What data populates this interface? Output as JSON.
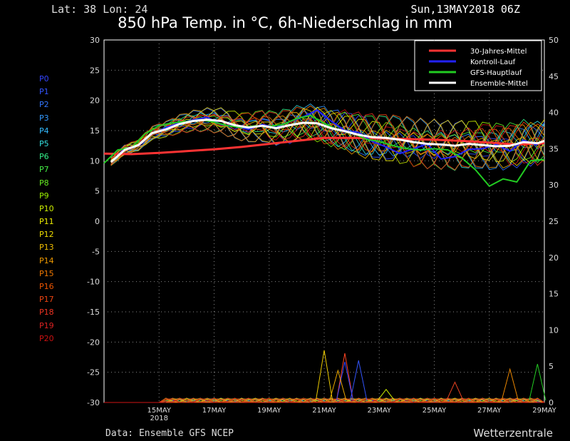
{
  "header": {
    "location": "Lat: 38 Lon: 24",
    "run_time": "Sun,13MAY2018 06Z",
    "title": "850 hPa Temp. in °C, 6h-Niederschlag in mm"
  },
  "footer": {
    "source": "Data: Ensemble GFS NCEP",
    "brand": "Wetterzentrale"
  },
  "members": [
    {
      "label": "P0",
      "color": "#3344ff"
    },
    {
      "label": "P1",
      "color": "#3355ff"
    },
    {
      "label": "P2",
      "color": "#3377ff"
    },
    {
      "label": "P3",
      "color": "#3399ff"
    },
    {
      "label": "P4",
      "color": "#33bbff"
    },
    {
      "label": "P5",
      "color": "#33dddd"
    },
    {
      "label": "P6",
      "color": "#33ee88"
    },
    {
      "label": "P7",
      "color": "#44ee44"
    },
    {
      "label": "P8",
      "color": "#66ee22"
    },
    {
      "label": "P9",
      "color": "#99ee00"
    },
    {
      "label": "P10",
      "color": "#ccee00"
    },
    {
      "label": "P11",
      "color": "#eeee00"
    },
    {
      "label": "P12",
      "color": "#eedd00"
    },
    {
      "label": "P13",
      "color": "#eebb00"
    },
    {
      "label": "P14",
      "color": "#ee9900"
    },
    {
      "label": "P15",
      "color": "#ee7700"
    },
    {
      "label": "P16",
      "color": "#ee5500"
    },
    {
      "label": "P17",
      "color": "#ee4411"
    },
    {
      "label": "P18",
      "color": "#ee3322"
    },
    {
      "label": "P19",
      "color": "#dd2222"
    },
    {
      "label": "P20",
      "color": "#cc1111"
    }
  ],
  "chart_data": {
    "type": "line",
    "title": "850 hPa Temp. in °C, 6h-Niederschlag in mm",
    "x_ticks": [
      {
        "label": "15MAY",
        "sub": "2018",
        "day": 2
      },
      {
        "label": "17MAY",
        "sub": "",
        "day": 4
      },
      {
        "label": "19MAY",
        "sub": "",
        "day": 6
      },
      {
        "label": "21MAY",
        "sub": "",
        "day": 8
      },
      {
        "label": "23MAY",
        "sub": "",
        "day": 10
      },
      {
        "label": "25MAY",
        "sub": "",
        "day": 12
      },
      {
        "label": "27MAY",
        "sub": "",
        "day": 14
      },
      {
        "label": "29MAY",
        "sub": "",
        "day": 16
      }
    ],
    "x_range_days": [
      0,
      16
    ],
    "y_left": {
      "range": [
        -30,
        30
      ],
      "ticks": [
        30,
        25,
        20,
        15,
        10,
        5,
        0,
        -5,
        -10,
        -15,
        -20,
        -25,
        -30
      ],
      "unit": "°C"
    },
    "y_right": {
      "range": [
        0,
        50
      ],
      "ticks": [
        50,
        45,
        40,
        35,
        30,
        25,
        20,
        15,
        10,
        5,
        0
      ],
      "unit": "mm"
    },
    "grid": true,
    "legend": {
      "placement": "top-right",
      "entries": [
        {
          "name": "30-Jahres-Mittel",
          "color": "#ff3333"
        },
        {
          "name": "Kontroll-Lauf",
          "color": "#2222ff"
        },
        {
          "name": "GFS-Hauptlauf",
          "color": "#22cc22"
        },
        {
          "name": "Ensemble-Mittel",
          "color": "#ffffff"
        }
      ]
    },
    "series": [
      {
        "name": "30-Jahres-Mittel",
        "color": "#ff3333",
        "width": 3,
        "x": [
          0,
          1,
          2,
          3,
          4,
          5,
          6,
          7,
          8,
          9,
          10,
          11,
          12,
          13,
          14,
          15,
          16
        ],
        "y": [
          11.2,
          11.1,
          11.3,
          11.6,
          11.9,
          12.3,
          12.8,
          13.3,
          13.8,
          13.8,
          13.7,
          13.6,
          13.5,
          13.3,
          13.0,
          12.7,
          12.9
        ]
      },
      {
        "name": "Kontroll-Lauf",
        "color": "#2222ff",
        "width": 2,
        "x": [
          0.25,
          0.75,
          1.25,
          1.75,
          2.25,
          2.75,
          3.25,
          3.75,
          4.25,
          4.75,
          5.25,
          5.75,
          6.25,
          6.75,
          7.25,
          7.75,
          8.25,
          8.75,
          9.25,
          9.75,
          10.25,
          10.75,
          11.25,
          11.75,
          12.25,
          12.75,
          13.25,
          13.75,
          14.25,
          14.75,
          15.25,
          15.75
        ],
        "y": [
          9.8,
          12.0,
          12.5,
          14.5,
          15.5,
          16.3,
          16.8,
          17.2,
          16.0,
          15.7,
          15.2,
          16.0,
          15.5,
          16.5,
          17.3,
          18.4,
          16.6,
          15.0,
          14.7,
          13.2,
          12.3,
          11.2,
          12.0,
          12.8,
          10.3,
          10.7,
          11.9,
          12.0,
          12.7,
          11.6,
          13.4,
          12.6
        ]
      },
      {
        "name": "GFS-Hauptlauf",
        "color": "#22cc22",
        "width": 2,
        "x": [
          0,
          0.5,
          1,
          1.5,
          2,
          2.5,
          3,
          3.5,
          4,
          4.5,
          5,
          5.5,
          6,
          6.5,
          7,
          7.5,
          8,
          8.5,
          9,
          9.5,
          10,
          10.5,
          11,
          11.5,
          12,
          12.5,
          13,
          13.5,
          14,
          14.5,
          15,
          15.5,
          16
        ],
        "y": [
          9.6,
          11.8,
          12.2,
          14.5,
          15.8,
          16.3,
          16.5,
          16.8,
          16.4,
          15.8,
          15.5,
          15.8,
          15.7,
          16.0,
          17.0,
          17.5,
          16.2,
          15.1,
          14.7,
          13.6,
          13.2,
          12.5,
          12.0,
          11.8,
          12.0,
          11.8,
          10.5,
          8.5,
          5.8,
          7.0,
          6.5,
          10.0,
          10.2
        ]
      },
      {
        "name": "Ensemble-Mittel",
        "color": "#ffffff",
        "width": 3,
        "x": [
          0.25,
          0.75,
          1.25,
          1.75,
          2.25,
          2.75,
          3.25,
          3.75,
          4.25,
          4.75,
          5.25,
          5.75,
          6.25,
          6.75,
          7.25,
          7.75,
          8.25,
          8.75,
          9.25,
          9.75,
          10.25,
          10.75,
          11.25,
          11.75,
          12.25,
          12.75,
          13.25,
          13.75,
          14.25,
          14.75,
          15.25,
          15.75,
          16
        ],
        "y": [
          9.8,
          11.8,
          12.6,
          14.6,
          15.2,
          16.1,
          16.6,
          16.8,
          16.6,
          15.9,
          15.5,
          15.8,
          15.4,
          15.9,
          16.3,
          16.2,
          15.4,
          14.9,
          14.3,
          13.9,
          13.8,
          13.5,
          13.1,
          12.8,
          12.7,
          12.5,
          12.8,
          12.6,
          12.4,
          12.5,
          13.1,
          12.9,
          13.3
        ]
      }
    ],
    "precipitation_mm_peaks": [
      {
        "x": 8.0,
        "y": 7.2,
        "color": "#eecc00"
      },
      {
        "x": 8.75,
        "y": 6.8,
        "color": "#ff4422"
      },
      {
        "x": 9.25,
        "y": 5.8,
        "color": "#3355ff"
      },
      {
        "x": 8.75,
        "y": 5.6,
        "color": "#3344ff"
      },
      {
        "x": 8.5,
        "y": 4.4,
        "color": "#eeaa00"
      },
      {
        "x": 14.75,
        "y": 4.6,
        "color": "#ee8800"
      },
      {
        "x": 15.75,
        "y": 5.3,
        "color": "#22cc22"
      },
      {
        "x": 12.75,
        "y": 2.8,
        "color": "#ee4422"
      },
      {
        "x": 10.25,
        "y": 1.8,
        "color": "#ccee00"
      }
    ]
  }
}
